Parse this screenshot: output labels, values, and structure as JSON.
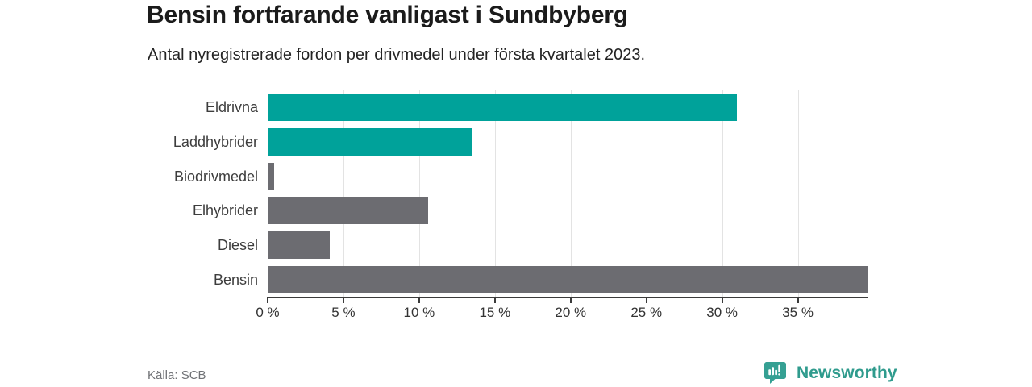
{
  "header": {
    "title": "Bensin fortfarande vanligast i Sundbyberg",
    "subtitle": "Antal nyregistrerade fordon per drivmedel under första kvartalet 2023."
  },
  "chart_data": {
    "type": "bar",
    "orientation": "horizontal",
    "title": "Bensin fortfarande vanligast i Sundbyberg",
    "subtitle": "Antal nyregistrerade fordon per drivmedel under första kvartalet 2023.",
    "categories": [
      "Eldrivna",
      "Laddhybrider",
      "Biodrivmedel",
      "Elhybrider",
      "Diesel",
      "Bensin"
    ],
    "values": [
      31.0,
      13.5,
      0.4,
      10.6,
      4.1,
      39.6
    ],
    "unit": "%",
    "xlim": [
      0,
      39.6
    ],
    "xticks": [
      0,
      5,
      10,
      15,
      20,
      25,
      30,
      35
    ],
    "xtick_labels": [
      "0 %",
      "5 %",
      "10 %",
      "15 %",
      "20 %",
      "25 %",
      "30 %",
      "35 %"
    ],
    "bar_colors": [
      "#00a29a",
      "#00a29a",
      "#6c6c71",
      "#6c6c71",
      "#6c6c71",
      "#6c6c71"
    ],
    "grid": true,
    "legend": false,
    "xlabel": "",
    "ylabel": ""
  },
  "footer": {
    "source": "Källa: SCB",
    "brand": "Newsworthy"
  },
  "colors": {
    "accent_teal": "#00a29a",
    "bar_gray": "#6c6c71",
    "logo_teal": "#2f9b8d",
    "gridline": "#e3e3e3",
    "axis": "#3b3b3b"
  }
}
